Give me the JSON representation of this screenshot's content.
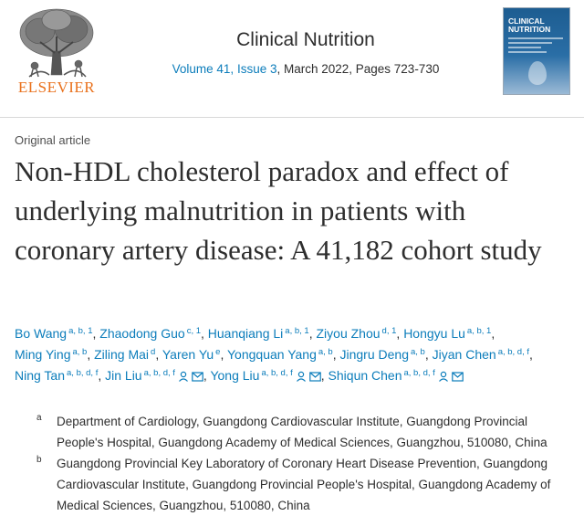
{
  "publisher": {
    "name": "ELSEVIER"
  },
  "journal": {
    "title": "Clinical Nutrition",
    "volume_issue": "Volume 41, Issue 3",
    "date_pages": ", March 2022, Pages 723-730",
    "cover_title_line1": "CLINICAL",
    "cover_title_line2": "NUTRITION"
  },
  "article": {
    "type": "Original article",
    "title": "Non-HDL cholesterol paradox and effect of underlying malnutrition in patients with coronary artery disease: A 41,182 cohort study"
  },
  "authors": [
    {
      "name": "Bo Wang",
      "sup": "a, b, 1"
    },
    {
      "name": "Zhaodong Guo",
      "sup": "c, 1"
    },
    {
      "name": "Huanqiang Li",
      "sup": "a, b, 1"
    },
    {
      "name": "Ziyou Zhou",
      "sup": "d, 1"
    },
    {
      "name": "Hongyu Lu",
      "sup": "a, b, 1"
    },
    {
      "name": "Ming Ying",
      "sup": "a, b"
    },
    {
      "name": "Ziling Mai",
      "sup": "d"
    },
    {
      "name": "Yaren Yu",
      "sup": "e"
    },
    {
      "name": "Yongquan Yang",
      "sup": "a, b"
    },
    {
      "name": "Jingru Deng",
      "sup": "a, b"
    },
    {
      "name": "Jiyan Chen",
      "sup": "a, b, d, f"
    },
    {
      "name": "Ning Tan",
      "sup": "a, b, d, f"
    },
    {
      "name": "Jin Liu",
      "sup": "a, b, d, f"
    },
    {
      "name": "Yong Liu",
      "sup": "a, b, d, f"
    },
    {
      "name": "Shiqun Chen",
      "sup": "a, b, d, f"
    }
  ],
  "separator": ",",
  "affiliations": [
    {
      "label": "a",
      "text": "Department of Cardiology, Guangdong Cardiovascular Institute, Guangdong Provincial People's Hospital, Guangdong Academy of Medical Sciences, Guangzhou, 510080, China"
    },
    {
      "label": "b",
      "text": "Guangdong Provincial Key Laboratory of Coronary Heart Disease Prevention, Guangdong Cardiovascular Institute, Guangdong Provincial People's Hospital, Guangdong Academy of Medical Sciences, Guangzhou, 510080, China"
    }
  ],
  "colors": {
    "link": "#0c7dbb",
    "publisher": "#e9711c",
    "text": "#2e2e2e"
  },
  "icons": {
    "person": "person-icon",
    "envelope": "envelope-icon"
  }
}
